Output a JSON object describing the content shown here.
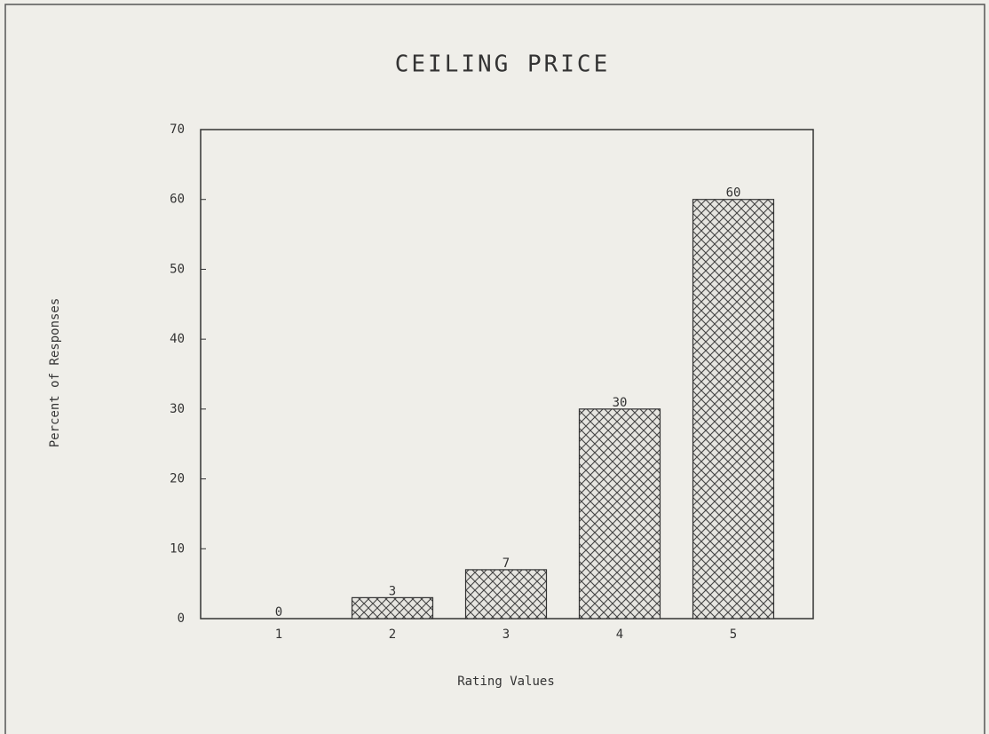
{
  "chart_data": {
    "type": "bar",
    "title": "CEILING PRICE",
    "x_label": "Rating Values",
    "y_label": "Percent of Responses",
    "categories": [
      "1",
      "2",
      "3",
      "4",
      "5"
    ],
    "values": [
      0,
      3,
      7,
      30,
      60
    ],
    "color": "#333333",
    "ylim": [
      0,
      70
    ],
    "yticks": [
      0,
      10,
      20,
      30,
      40,
      50,
      60,
      70
    ],
    "grid": false
  }
}
